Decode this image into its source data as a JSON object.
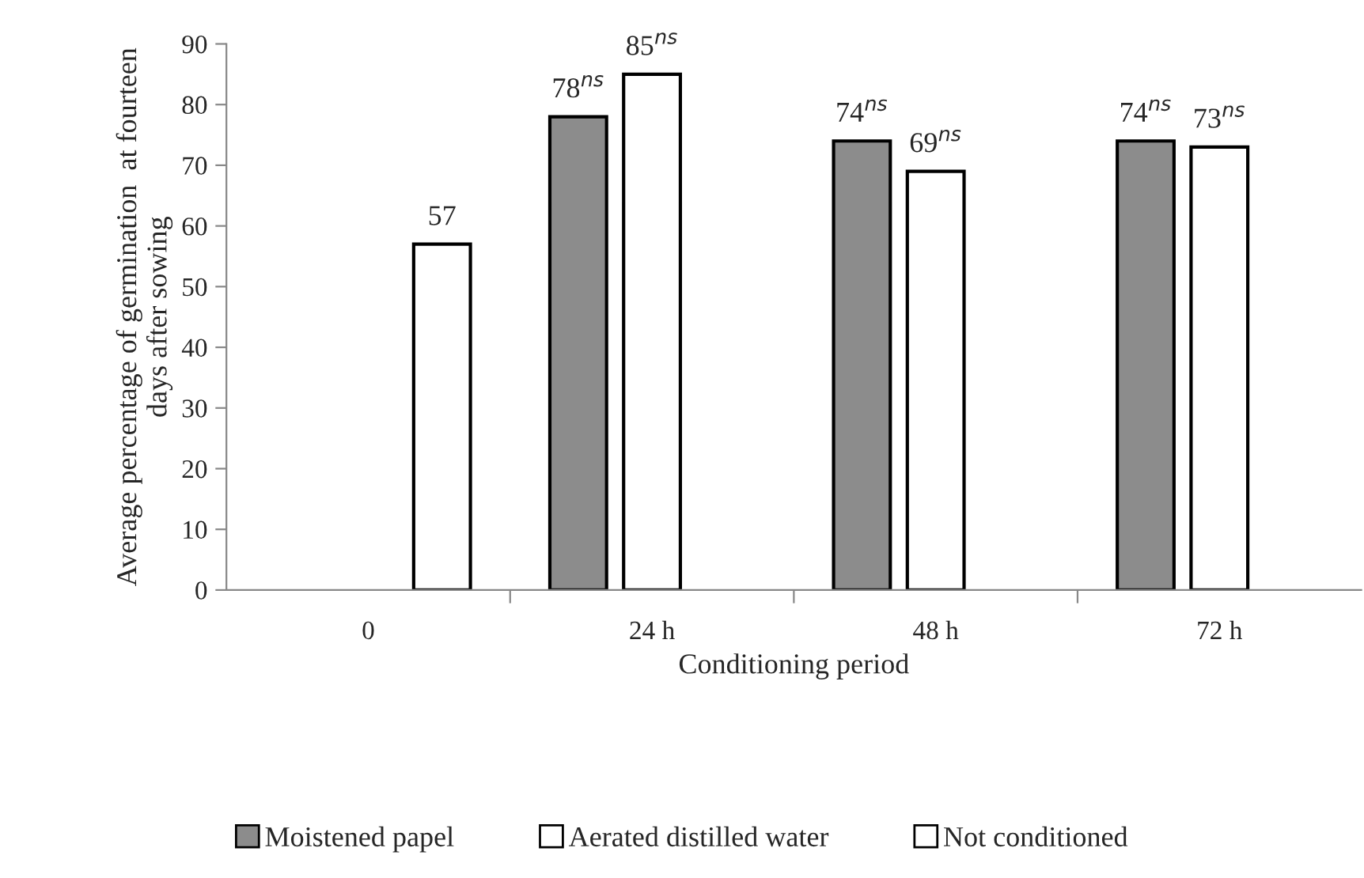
{
  "chart_data": {
    "type": "bar",
    "categories": [
      "0",
      "24 h",
      "48 h",
      "72 h"
    ],
    "xlabel": "Conditioning period",
    "ylabel": "Average percentage of germination  at fourteen\ndays after sowing",
    "series": [
      {
        "name": "Moistened papel",
        "color": "#8c8c8c",
        "values": [
          null,
          78,
          74,
          74
        ],
        "value_labels": [
          null,
          "78$^{ns}$",
          "74$^{ns}$",
          "74$^{ns}$"
        ]
      },
      {
        "name": "Aerated distilled water",
        "color": "#ffffff",
        "values": [
          null,
          85,
          69,
          73
        ],
        "value_labels": [
          null,
          "85$^{ns}$",
          "69$^{ns}$",
          "73$^{ns}$"
        ]
      },
      {
        "name": "Not conditioned",
        "color": "#ffffff",
        "values": [
          57,
          null,
          null,
          null
        ],
        "value_labels": [
          "57",
          null,
          null,
          null
        ]
      }
    ],
    "ylim": [
      0,
      90
    ],
    "yticks": [
      0,
      10,
      20,
      30,
      40,
      50,
      60,
      70,
      80,
      90
    ],
    "grid": false,
    "legend": "bottom"
  }
}
